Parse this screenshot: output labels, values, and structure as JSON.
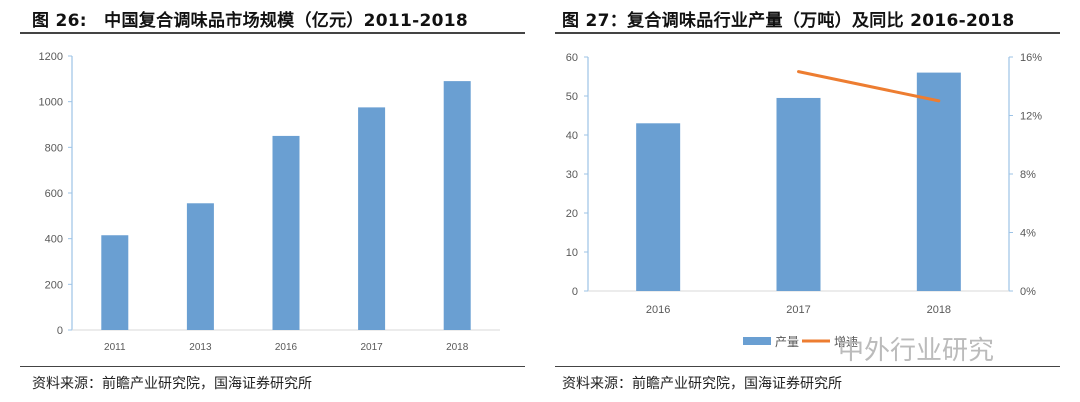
{
  "figures": [
    {
      "title": "图 26:　中国复合调味品市场规模（亿元）2011-2018",
      "source": "资料来源：前瞻产业研究院，国海证券研究所"
    },
    {
      "title": "图 27：复合调味品行业产量（万吨）及同比 2016-2018",
      "source": "资料来源：前瞻产业研究院，国海证券研究所"
    }
  ],
  "watermark": "中外行业研究",
  "colors": {
    "bar": "#6A9FD2",
    "line": "#ED7D31",
    "axis": "#9DC3E6",
    "tick_text": "#595959"
  },
  "chart_data": [
    {
      "type": "bar",
      "title": "中国复合调味品市场规模（亿元）2011-2018",
      "categories": [
        "2011",
        "2013",
        "2016",
        "2017",
        "2018"
      ],
      "values": [
        415,
        555,
        850,
        975,
        1090
      ],
      "xlabel": "",
      "ylabel": "亿元",
      "ylim": [
        0,
        1200
      ],
      "yticks": [
        "0",
        "200",
        "400",
        "600",
        "800",
        "1000",
        "1200"
      ],
      "grid": false,
      "legend": null
    },
    {
      "type": "bar+line",
      "title": "复合调味品行业产量（万吨）及同比 2016-2018",
      "categories": [
        "2016",
        "2017",
        "2018"
      ],
      "series": [
        {
          "name": "产量",
          "type": "bar",
          "axis": "left",
          "values": [
            43,
            49.5,
            56
          ]
        },
        {
          "name": "增速",
          "type": "line",
          "axis": "right",
          "values": [
            null,
            15.0,
            13.0
          ],
          "unit": "%"
        }
      ],
      "ylim": [
        0,
        60
      ],
      "yticks": [
        "0",
        "10",
        "20",
        "30",
        "40",
        "50",
        "60"
      ],
      "y2lim": [
        0,
        16
      ],
      "y2ticks": [
        "0%",
        "4%",
        "8%",
        "12%",
        "16%"
      ],
      "grid": false,
      "legend": {
        "position": "bottom",
        "entries": [
          "产量",
          "增速"
        ]
      }
    }
  ]
}
